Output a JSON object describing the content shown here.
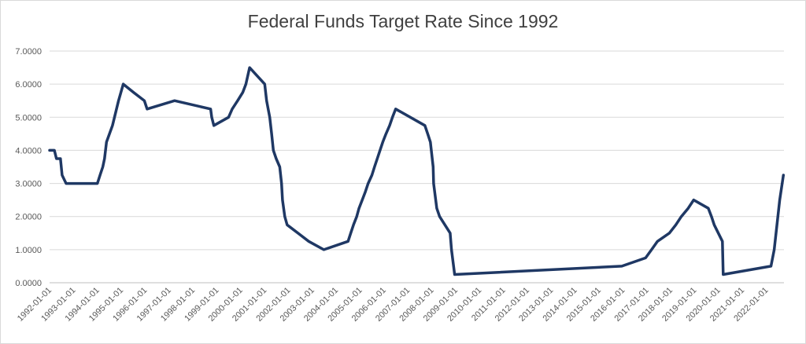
{
  "chart_data": {
    "type": "line",
    "title": "Federal Funds Target Rate Since 1992",
    "xlabel": "",
    "ylabel": "",
    "ylim": [
      0,
      7
    ],
    "y_ticks": [
      "0.0000",
      "1.0000",
      "2.0000",
      "3.0000",
      "4.0000",
      "5.0000",
      "6.0000",
      "7.0000"
    ],
    "x_ticks": [
      "1992-01-01",
      "1993-01-01",
      "1994-01-01",
      "1995-01-01",
      "1996-01-01",
      "1997-01-01",
      "1998-01-01",
      "1999-01-01",
      "2000-01-01",
      "2001-01-01",
      "2002-01-01",
      "2003-01-01",
      "2004-01-01",
      "2005-01-01",
      "2006-01-01",
      "2007-01-01",
      "2008-01-01",
      "2009-01-01",
      "2010-01-01",
      "2011-01-01",
      "2012-01-01",
      "2013-01-01",
      "2014-01-01",
      "2015-01-01",
      "2016-01-01",
      "2017-01-01",
      "2018-01-01",
      "2019-01-01",
      "2020-01-01",
      "2021-01-01",
      "2022-01-01"
    ],
    "grid": true,
    "legend": "none",
    "line_color": "#1f3864",
    "series": [
      {
        "x": [
          "1992-01-01",
          "1992-03-15",
          "1992-04-15",
          "1992-06-15",
          "1992-07-10",
          "1992-09-10",
          "1994-01-01",
          "1994-02-10",
          "1994-03-25",
          "1994-04-20",
          "1994-05-20",
          "1994-08-20",
          "1994-11-20",
          "1995-02-01",
          "1995-07-10",
          "1995-12-20",
          "1996-01-31",
          "1997-03-26",
          "1998-09-29",
          "1998-10-15",
          "1998-11-17",
          "1999-06-30",
          "1999-08-24",
          "1999-11-16",
          "2000-02-02",
          "2000-03-21",
          "2000-05-16",
          "2001-01-03",
          "2001-01-31",
          "2001-03-20",
          "2001-04-18",
          "2001-05-15",
          "2001-06-27",
          "2001-08-21",
          "2001-09-17",
          "2001-10-02",
          "2001-11-06",
          "2001-12-11",
          "2002-11-06",
          "2003-06-25",
          "2004-06-30",
          "2004-08-10",
          "2004-09-21",
          "2004-11-10",
          "2004-12-14",
          "2005-02-02",
          "2005-03-22",
          "2005-05-03",
          "2005-06-30",
          "2005-08-09",
          "2005-09-20",
          "2005-11-01",
          "2005-12-13",
          "2006-01-31",
          "2006-03-28",
          "2006-05-10",
          "2006-06-29",
          "2007-09-18",
          "2007-10-31",
          "2007-12-11",
          "2008-01-22",
          "2008-01-30",
          "2008-03-18",
          "2008-04-30",
          "2008-10-08",
          "2008-10-29",
          "2008-12-16",
          "2015-12-16",
          "2016-12-14",
          "2017-03-15",
          "2017-06-14",
          "2017-12-13",
          "2018-03-21",
          "2018-06-13",
          "2018-09-26",
          "2018-12-19",
          "2019-07-31",
          "2019-09-18",
          "2019-10-30",
          "2020-03-03",
          "2020-03-15",
          "2022-03-16",
          "2022-05-04",
          "2022-06-15",
          "2022-07-27",
          "2022-09-21"
        ],
        "values": [
          4.0,
          4.0,
          3.75,
          3.75,
          3.25,
          3.0,
          3.0,
          3.25,
          3.5,
          3.75,
          4.25,
          4.75,
          5.5,
          6.0,
          5.75,
          5.5,
          5.25,
          5.5,
          5.25,
          5.0,
          4.75,
          5.0,
          5.25,
          5.5,
          5.75,
          6.0,
          6.5,
          6.0,
          5.5,
          5.0,
          4.5,
          4.0,
          3.75,
          3.5,
          3.0,
          2.5,
          2.0,
          1.75,
          1.25,
          1.0,
          1.25,
          1.5,
          1.75,
          2.0,
          2.25,
          2.5,
          2.75,
          3.0,
          3.25,
          3.5,
          3.75,
          4.0,
          4.25,
          4.5,
          4.75,
          5.0,
          5.25,
          4.75,
          4.5,
          4.25,
          3.5,
          3.0,
          2.25,
          2.0,
          1.5,
          1.0,
          0.25,
          0.5,
          0.75,
          1.0,
          1.25,
          1.5,
          1.75,
          2.0,
          2.25,
          2.5,
          2.25,
          2.0,
          1.75,
          1.25,
          0.25,
          0.5,
          1.0,
          1.75,
          2.5,
          3.25
        ]
      }
    ]
  }
}
